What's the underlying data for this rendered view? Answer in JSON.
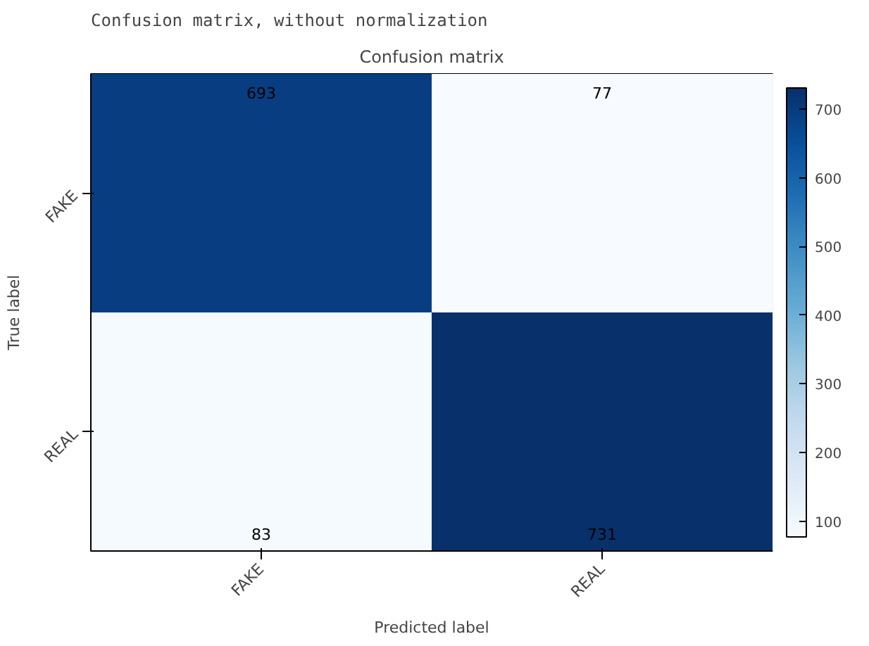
{
  "chart_data": {
    "type": "heatmap",
    "title": "Confusion matrix",
    "xlabel": "Predicted label",
    "ylabel": "True label",
    "annotations": [
      "Confusion matrix, without normalization"
    ],
    "categories": [
      "FAKE",
      "REAL"
    ],
    "y_categories": [
      "FAKE",
      "REAL"
    ],
    "cells": [
      [
        693,
        77
      ],
      [
        83,
        731
      ]
    ],
    "clim": [
      77,
      731
    ],
    "cticks": [
      100,
      200,
      300,
      400,
      500,
      600,
      700
    ],
    "data_labels": true
  }
}
